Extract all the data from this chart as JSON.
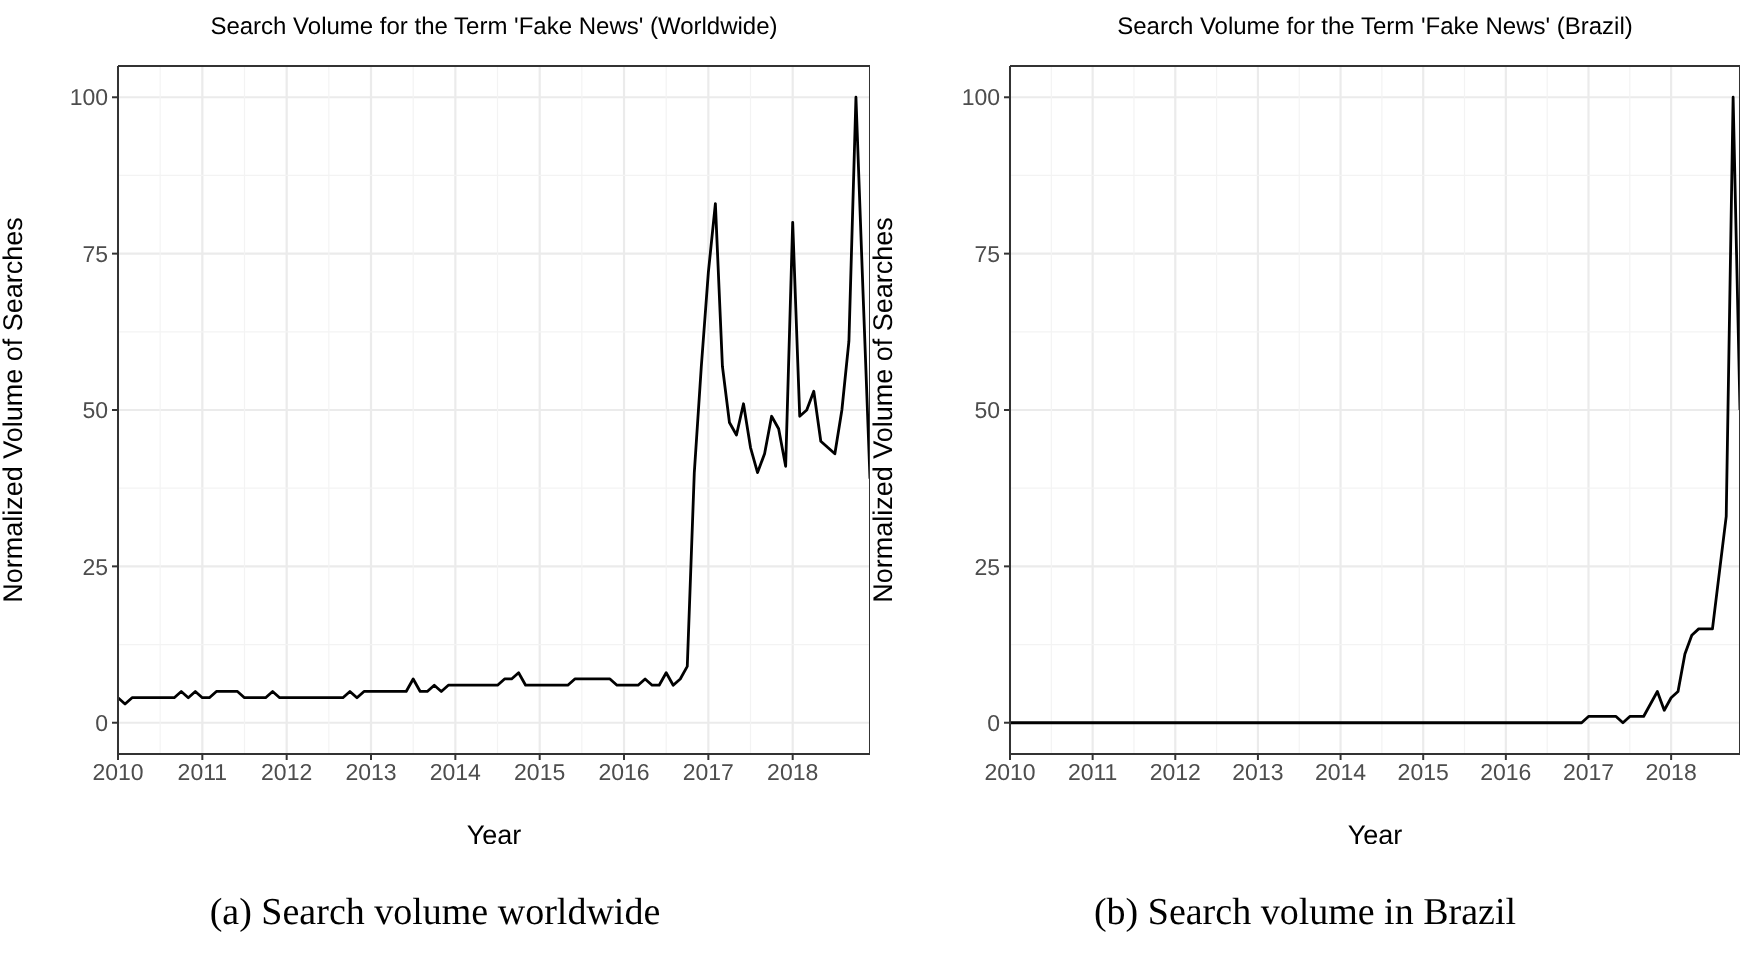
{
  "chart_data": [
    {
      "type": "line",
      "title": "Search Volume for the Term 'Fake News' (Worldwide)",
      "xlabel": "Year",
      "ylabel": "Normalized Volume of Searches",
      "annotations": [
        "(a) Search volume worldwide"
      ],
      "grid": true,
      "marker": "none",
      "line_style": "solid",
      "x": [
        "2010-01",
        "2010-02",
        "2010-03",
        "2010-04",
        "2010-05",
        "2010-06",
        "2010-07",
        "2010-08",
        "2010-09",
        "2010-10",
        "2010-11",
        "2010-12",
        "2011-01",
        "2011-02",
        "2011-03",
        "2011-04",
        "2011-05",
        "2011-06",
        "2011-07",
        "2011-08",
        "2011-09",
        "2011-10",
        "2011-11",
        "2011-12",
        "2012-01",
        "2012-02",
        "2012-03",
        "2012-04",
        "2012-05",
        "2012-06",
        "2012-07",
        "2012-08",
        "2012-09",
        "2012-10",
        "2012-11",
        "2012-12",
        "2013-01",
        "2013-02",
        "2013-03",
        "2013-04",
        "2013-05",
        "2013-06",
        "2013-07",
        "2013-08",
        "2013-09",
        "2013-10",
        "2013-11",
        "2013-12",
        "2014-01",
        "2014-02",
        "2014-03",
        "2014-04",
        "2014-05",
        "2014-06",
        "2014-07",
        "2014-08",
        "2014-09",
        "2014-10",
        "2014-11",
        "2014-12",
        "2015-01",
        "2015-02",
        "2015-03",
        "2015-04",
        "2015-05",
        "2015-06",
        "2015-07",
        "2015-08",
        "2015-09",
        "2015-10",
        "2015-11",
        "2015-12",
        "2016-01",
        "2016-02",
        "2016-03",
        "2016-04",
        "2016-05",
        "2016-06",
        "2016-07",
        "2016-08",
        "2016-09",
        "2016-10",
        "2016-11",
        "2016-12",
        "2017-01",
        "2017-02",
        "2017-03",
        "2017-04",
        "2017-05",
        "2017-06",
        "2017-07",
        "2017-08",
        "2017-09",
        "2017-10",
        "2017-11",
        "2017-12",
        "2018-01",
        "2018-02",
        "2018-03",
        "2018-04",
        "2018-05",
        "2018-06",
        "2018-07",
        "2018-08",
        "2018-09",
        "2018-10",
        "2018-11",
        "2018-12"
      ],
      "series": [
        {
          "color": "#000000",
          "values": [
            4,
            3,
            4,
            4,
            4,
            4,
            4,
            4,
            4,
            5,
            4,
            5,
            4,
            4,
            5,
            5,
            5,
            5,
            4,
            4,
            4,
            4,
            5,
            4,
            4,
            4,
            4,
            4,
            4,
            4,
            4,
            4,
            4,
            5,
            4,
            5,
            5,
            5,
            5,
            5,
            5,
            5,
            7,
            5,
            5,
            6,
            5,
            6,
            6,
            6,
            6,
            6,
            6,
            6,
            6,
            7,
            7,
            8,
            6,
            6,
            6,
            6,
            6,
            6,
            6,
            7,
            7,
            7,
            7,
            7,
            7,
            6,
            6,
            6,
            6,
            7,
            6,
            6,
            8,
            6,
            7,
            9,
            40,
            57,
            72,
            83,
            57,
            48,
            46,
            51,
            44,
            40,
            43,
            49,
            47,
            41,
            80,
            49,
            50,
            53,
            45,
            44,
            43,
            50,
            61,
            100,
            69,
            39
          ]
        }
      ],
      "xlim": [
        "2010-01",
        "2018-12"
      ],
      "xticks": [
        "2010",
        "2011",
        "2012",
        "2013",
        "2014",
        "2015",
        "2016",
        "2017",
        "2018"
      ],
      "ylim": [
        -5,
        105
      ],
      "yticks": [
        0,
        25,
        50,
        75,
        100
      ]
    },
    {
      "type": "line",
      "title": "Search Volume for the Term 'Fake News' (Brazil)",
      "xlabel": "Year",
      "ylabel": "Normalized Volume of Searches",
      "annotations": [
        "(b) Search volume in Brazil"
      ],
      "grid": true,
      "marker": "none",
      "line_style": "solid",
      "x": [
        "2010-01",
        "2010-02",
        "2010-03",
        "2010-04",
        "2010-05",
        "2010-06",
        "2010-07",
        "2010-08",
        "2010-09",
        "2010-10",
        "2010-11",
        "2010-12",
        "2011-01",
        "2011-02",
        "2011-03",
        "2011-04",
        "2011-05",
        "2011-06",
        "2011-07",
        "2011-08",
        "2011-09",
        "2011-10",
        "2011-11",
        "2011-12",
        "2012-01",
        "2012-02",
        "2012-03",
        "2012-04",
        "2012-05",
        "2012-06",
        "2012-07",
        "2012-08",
        "2012-09",
        "2012-10",
        "2012-11",
        "2012-12",
        "2013-01",
        "2013-02",
        "2013-03",
        "2013-04",
        "2013-05",
        "2013-06",
        "2013-07",
        "2013-08",
        "2013-09",
        "2013-10",
        "2013-11",
        "2013-12",
        "2014-01",
        "2014-02",
        "2014-03",
        "2014-04",
        "2014-05",
        "2014-06",
        "2014-07",
        "2014-08",
        "2014-09",
        "2014-10",
        "2014-11",
        "2014-12",
        "2015-01",
        "2015-02",
        "2015-03",
        "2015-04",
        "2015-05",
        "2015-06",
        "2015-07",
        "2015-08",
        "2015-09",
        "2015-10",
        "2015-11",
        "2015-12",
        "2016-01",
        "2016-02",
        "2016-03",
        "2016-04",
        "2016-05",
        "2016-06",
        "2016-07",
        "2016-08",
        "2016-09",
        "2016-10",
        "2016-11",
        "2016-12",
        "2017-01",
        "2017-02",
        "2017-03",
        "2017-04",
        "2017-05",
        "2017-06",
        "2017-07",
        "2017-08",
        "2017-09",
        "2017-10",
        "2017-11",
        "2017-12",
        "2018-01",
        "2018-02",
        "2018-03",
        "2018-04",
        "2018-05",
        "2018-06",
        "2018-07",
        "2018-08",
        "2018-09",
        "2018-10",
        "2018-11"
      ],
      "series": [
        {
          "color": "#000000",
          "values": [
            0,
            0,
            0,
            0,
            0,
            0,
            0,
            0,
            0,
            0,
            0,
            0,
            0,
            0,
            0,
            0,
            0,
            0,
            0,
            0,
            0,
            0,
            0,
            0,
            0,
            0,
            0,
            0,
            0,
            0,
            0,
            0,
            0,
            0,
            0,
            0,
            0,
            0,
            0,
            0,
            0,
            0,
            0,
            0,
            0,
            0,
            0,
            0,
            0,
            0,
            0,
            0,
            0,
            0,
            0,
            0,
            0,
            0,
            0,
            0,
            0,
            0,
            0,
            0,
            0,
            0,
            0,
            0,
            0,
            0,
            0,
            0,
            0,
            0,
            0,
            0,
            0,
            0,
            0,
            0,
            0,
            0,
            0,
            0,
            1,
            1,
            1,
            1,
            1,
            0,
            1,
            1,
            1,
            3,
            5,
            2,
            4,
            5,
            11,
            14,
            15,
            15,
            15,
            24,
            33,
            100,
            50
          ]
        }
      ],
      "xlim": [
        "2010-01",
        "2018-11"
      ],
      "xticks": [
        "2010",
        "2011",
        "2012",
        "2013",
        "2014",
        "2015",
        "2016",
        "2017",
        "2018"
      ],
      "ylim": [
        -5,
        105
      ],
      "yticks": [
        0,
        25,
        50,
        75,
        100
      ]
    }
  ]
}
